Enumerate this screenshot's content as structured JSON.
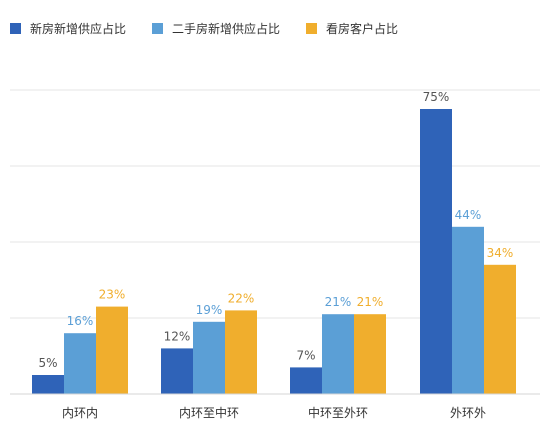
{
  "chart_data": {
    "type": "bar",
    "categories": [
      "内环内",
      "内环至中环",
      "中环至外环",
      "外环外"
    ],
    "series": [
      {
        "name": "新房新增供应占比",
        "values": [
          5,
          12,
          7,
          75
        ],
        "labels": [
          "5%",
          "12%",
          "7%",
          "75%"
        ],
        "color": "#2f63b8",
        "label_color": "#555555"
      },
      {
        "name": "二手房新增供应占比",
        "values": [
          16,
          19,
          21,
          44
        ],
        "labels": [
          "16%",
          "19%",
          "21%",
          "44%"
        ],
        "color": "#5b9fd6",
        "label_color": "#5b9fd6"
      },
      {
        "name": "看房客户占比",
        "values": [
          23,
          22,
          21,
          34
        ],
        "labels": [
          "23%",
          "22%",
          "21%",
          "34%"
        ],
        "color": "#f0ae2d",
        "label_color": "#f0ae2d"
      }
    ],
    "ylim": [
      0,
      80
    ],
    "grid": true,
    "legend_position": "top-left",
    "title": "",
    "xlabel": "",
    "ylabel": ""
  }
}
